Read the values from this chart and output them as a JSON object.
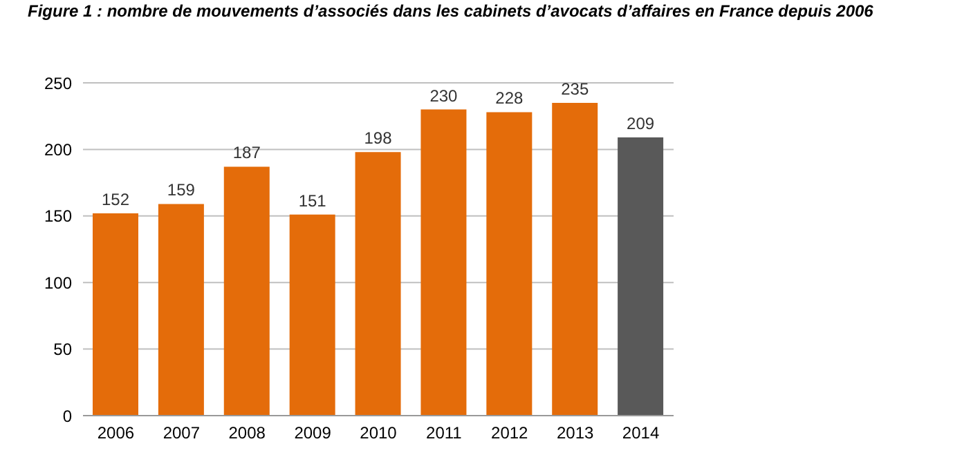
{
  "chart_data": {
    "type": "bar",
    "title": "Figure 1 : nombre de mouvements d’associés dans les cabinets d’avocats d’affaires en France depuis 2006",
    "categories": [
      "2006",
      "2007",
      "2008",
      "2009",
      "2010",
      "2011",
      "2012",
      "2013",
      "2014"
    ],
    "values": [
      152,
      159,
      187,
      151,
      198,
      230,
      228,
      235,
      209
    ],
    "colors": [
      "#e46c0a",
      "#e46c0a",
      "#e46c0a",
      "#e46c0a",
      "#e46c0a",
      "#e46c0a",
      "#e46c0a",
      "#e46c0a",
      "#595959"
    ],
    "ylim": [
      0,
      250
    ],
    "yticks": [
      0,
      50,
      100,
      150,
      200,
      250
    ],
    "grid": "y",
    "data_labels": true
  }
}
